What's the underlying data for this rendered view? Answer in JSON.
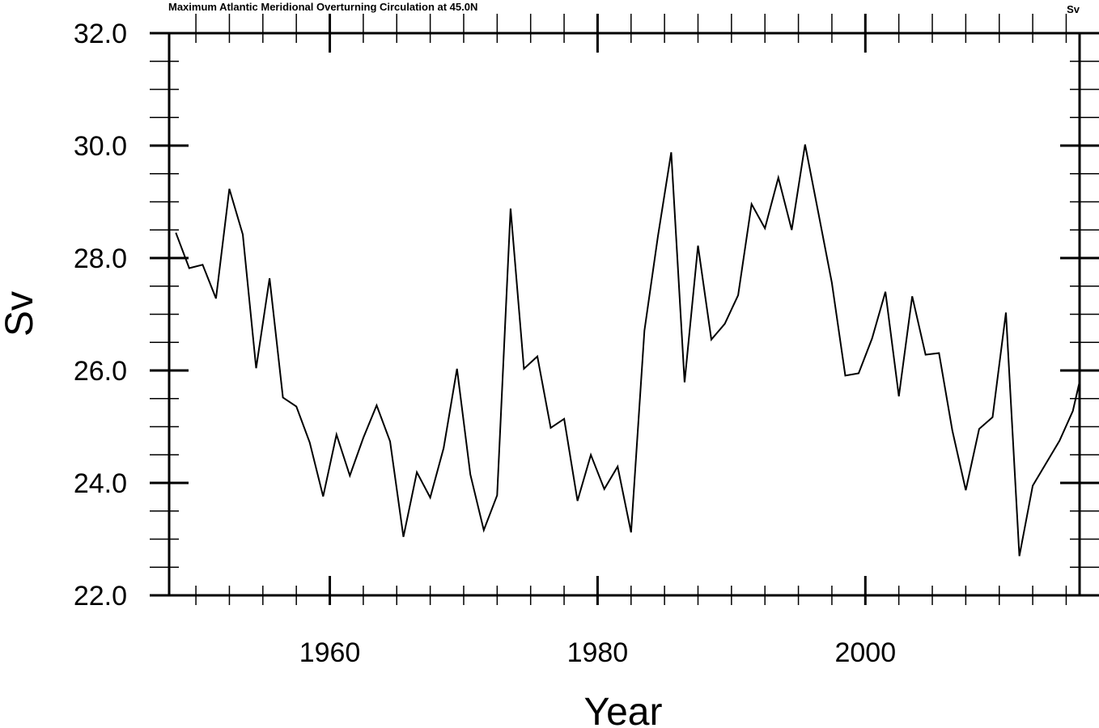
{
  "chart_data": {
    "type": "line",
    "title": "Maximum  Atlantic Meridional Overturning Circulation at 45.0N",
    "units_label": "Sv",
    "xlabel": "Year",
    "ylabel": "Sv",
    "xlim": [
      1948,
      2016
    ],
    "ylim": [
      22.0,
      32.0
    ],
    "x_ticks": [
      1960,
      1980,
      2000
    ],
    "x_tick_labels": [
      "1960",
      "1980",
      "2000"
    ],
    "y_ticks": [
      22,
      24,
      26,
      28,
      30,
      32
    ],
    "y_tick_labels": [
      "22.0",
      "24.0",
      "26.0",
      "28.0",
      "30.0",
      "32.0"
    ],
    "line_color": "#000000",
    "grid": false,
    "series": [
      {
        "x": [
          1948.5,
          1949.5,
          1950.5,
          1951.5,
          1952.5,
          1953.5,
          1954.5,
          1955.5,
          1956.5,
          1957.5,
          1958.5,
          1959.5,
          1960.5,
          1961.5,
          1962.5,
          1963.5,
          1964.5,
          1965.5,
          1966.5,
          1967.5,
          1968.5,
          1969.5,
          1970.5,
          1971.5,
          1972.5,
          1973.5,
          1974.5,
          1975.5,
          1976.5,
          1977.5,
          1978.5,
          1979.5,
          1980.5,
          1981.5,
          1982.5,
          1983.5,
          1984.5,
          1985.5,
          1986.5,
          1987.5,
          1988.5,
          1989.5,
          1990.5,
          1991.5,
          1992.5,
          1993.5,
          1994.5,
          1995.5,
          1996.5,
          1997.5,
          1998.5,
          1999.5,
          2000.5,
          2001.5,
          2002.5,
          2003.5,
          2004.5,
          2005.5,
          2006.5,
          2007.5,
          2008.5,
          2009.5,
          2010.5,
          2011.5,
          2012.5,
          2013.5,
          2014.5,
          2015.5,
          2016.0
        ],
        "values": [
          28.45,
          27.82,
          27.88,
          27.28,
          29.23,
          28.42,
          26.04,
          27.64,
          25.52,
          25.36,
          24.72,
          23.76,
          24.86,
          24.13,
          24.8,
          25.38,
          24.74,
          23.04,
          24.19,
          23.74,
          24.62,
          26.03,
          24.15,
          23.16,
          23.78,
          28.88,
          26.03,
          26.25,
          24.98,
          25.14,
          23.68,
          24.5,
          23.89,
          24.29,
          23.12,
          26.71,
          28.38,
          29.88,
          25.79,
          28.22,
          26.55,
          26.83,
          27.34,
          28.96,
          28.53,
          29.43,
          28.5,
          30.02,
          28.79,
          27.56,
          25.91,
          25.95,
          26.57,
          27.4,
          25.54,
          27.32,
          26.28,
          26.31,
          24.93,
          23.87,
          24.96,
          25.17,
          27.03,
          22.7,
          23.95,
          24.35,
          24.75,
          25.28,
          25.8
        ]
      }
    ]
  }
}
